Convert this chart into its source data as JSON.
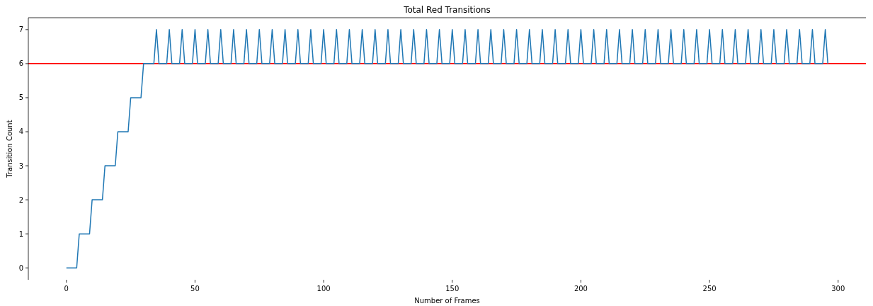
{
  "chart_data": {
    "type": "line",
    "title": "Total Red Transitions",
    "xlabel": "Number of Frames",
    "ylabel": "Transition Count",
    "xlim": [
      -14.8,
      310.8
    ],
    "xticks": [
      0,
      50,
      100,
      150,
      200,
      250,
      300
    ],
    "ylim": [
      -0.35,
      7.35
    ],
    "yticks": [
      0,
      1,
      2,
      3,
      4,
      5,
      6,
      7
    ],
    "grid": false,
    "ref_lines": [
      {
        "axis": "y",
        "value": 6,
        "color": "#ff0000"
      }
    ],
    "series": [
      {
        "color": "#1f77b4",
        "x": [
          0,
          4,
          5,
          9,
          10,
          14,
          15,
          19,
          20,
          24,
          25,
          29,
          30,
          34,
          35,
          36,
          39,
          40,
          41,
          44,
          45,
          46,
          49,
          50,
          51,
          54,
          55,
          56,
          59,
          60,
          61,
          64,
          65,
          66,
          69,
          70,
          71,
          74,
          75,
          76,
          79,
          80,
          81,
          84,
          85,
          86,
          89,
          90,
          91,
          94,
          95,
          96,
          99,
          100,
          101,
          104,
          105,
          106,
          109,
          110,
          111,
          114,
          115,
          116,
          119,
          120,
          121,
          124,
          125,
          126,
          129,
          130,
          131,
          134,
          135,
          136,
          139,
          140,
          141,
          144,
          145,
          146,
          149,
          150,
          151,
          154,
          155,
          156,
          159,
          160,
          161,
          164,
          165,
          166,
          169,
          170,
          171,
          174,
          175,
          176,
          179,
          180,
          181,
          184,
          185,
          186,
          189,
          190,
          191,
          194,
          195,
          196,
          199,
          200,
          201,
          204,
          205,
          206,
          209,
          210,
          211,
          214,
          215,
          216,
          219,
          220,
          221,
          224,
          225,
          226,
          229,
          230,
          231,
          234,
          235,
          236,
          239,
          240,
          241,
          244,
          245,
          246,
          249,
          250,
          251,
          254,
          255,
          256,
          259,
          260,
          261,
          264,
          265,
          266,
          269,
          270,
          271,
          274,
          275,
          276,
          279,
          280,
          281,
          284,
          285,
          286,
          289,
          290,
          291,
          294,
          295,
          296
        ],
        "values": [
          0,
          0,
          1,
          1,
          2,
          2,
          3,
          3,
          4,
          4,
          5,
          5,
          6,
          6,
          7,
          6,
          6,
          7,
          6,
          6,
          7,
          6,
          6,
          7,
          6,
          6,
          7,
          6,
          6,
          7,
          6,
          6,
          7,
          6,
          6,
          7,
          6,
          6,
          7,
          6,
          6,
          7,
          6,
          6,
          7,
          6,
          6,
          7,
          6,
          6,
          7,
          6,
          6,
          7,
          6,
          6,
          7,
          6,
          6,
          7,
          6,
          6,
          7,
          6,
          6,
          7,
          6,
          6,
          7,
          6,
          6,
          7,
          6,
          6,
          7,
          6,
          6,
          7,
          6,
          6,
          7,
          6,
          6,
          7,
          6,
          6,
          7,
          6,
          6,
          7,
          6,
          6,
          7,
          6,
          6,
          7,
          6,
          6,
          7,
          6,
          6,
          7,
          6,
          6,
          7,
          6,
          6,
          7,
          6,
          6,
          7,
          6,
          6,
          7,
          6,
          6,
          7,
          6,
          6,
          7,
          6,
          6,
          7,
          6,
          6,
          7,
          6,
          6,
          7,
          6,
          6,
          7,
          6,
          6,
          7,
          6,
          6,
          7,
          6,
          6,
          7,
          6,
          6,
          7,
          6,
          6,
          7,
          6,
          6,
          7,
          6,
          6,
          7,
          6,
          6,
          7,
          6,
          6,
          7,
          6,
          6,
          7,
          6,
          6,
          7,
          6,
          6,
          7,
          6,
          6,
          7,
          6
        ]
      }
    ]
  }
}
